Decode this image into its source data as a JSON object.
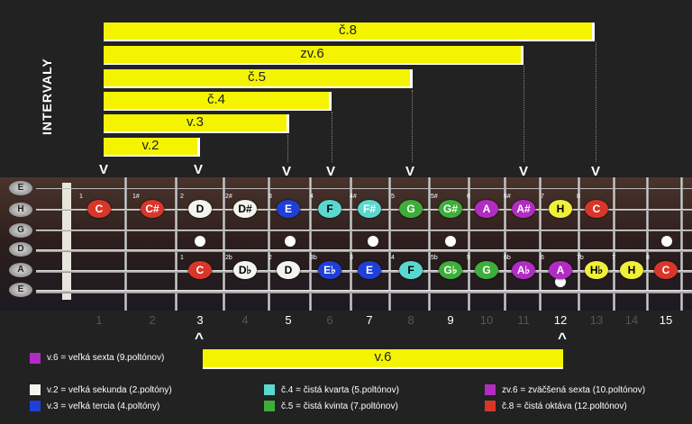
{
  "title": "INTERVALY",
  "intervals": [
    {
      "label": "č.8"
    },
    {
      "label": "zv.6"
    },
    {
      "label": "č.5"
    },
    {
      "label": "č.4"
    },
    {
      "label": "v.3"
    },
    {
      "label": "v.2"
    }
  ],
  "v_marker": "V",
  "caret": "^",
  "bottom_interval": "v.6",
  "strings": [
    "E",
    "H",
    "G",
    "D",
    "A",
    "E"
  ],
  "fret_numbers": [
    "1",
    "2",
    "3",
    "4",
    "5",
    "6",
    "7",
    "8",
    "9",
    "10",
    "11",
    "12",
    "13",
    "14",
    "15"
  ],
  "row_h": [
    {
      "n": "1",
      "note": "C",
      "color": "#d9362a",
      "text": "#fff"
    },
    {
      "n": "1#",
      "note": "C#",
      "color": "#d9362a",
      "text": "#fff"
    },
    {
      "n": "2",
      "note": "D",
      "color": "#f4f4ee",
      "text": "#000"
    },
    {
      "n": "2#",
      "note": "D#",
      "color": "#f4f4ee",
      "text": "#000"
    },
    {
      "n": "3",
      "note": "E",
      "color": "#1f3fd6",
      "text": "#fff"
    },
    {
      "n": "4",
      "note": "F",
      "color": "#5ad8cf",
      "text": "#000"
    },
    {
      "n": "4#",
      "note": "F#",
      "color": "#5ad8cf",
      "text": "#fff"
    },
    {
      "n": "5",
      "note": "G",
      "color": "#3eae3a",
      "text": "#fff"
    },
    {
      "n": "5#",
      "note": "G#",
      "color": "#3eae3a",
      "text": "#fff"
    },
    {
      "n": "6",
      "note": "A",
      "color": "#b22cc4",
      "text": "#fff"
    },
    {
      "n": "6#",
      "note": "A#",
      "color": "#b22cc4",
      "text": "#fff"
    },
    {
      "n": "7",
      "note": "H",
      "color": "#f0ef3a",
      "text": "#000"
    },
    {
      "n": "8",
      "note": "C",
      "color": "#d9362a",
      "text": "#fff"
    }
  ],
  "row_a": [
    {
      "n": "1",
      "note": "C",
      "color": "#d9362a",
      "text": "#fff"
    },
    {
      "n": "2b",
      "note": "D♭",
      "color": "#f4f4ee",
      "text": "#000"
    },
    {
      "n": "2",
      "note": "D",
      "color": "#f4f4ee",
      "text": "#000"
    },
    {
      "n": "3b",
      "note": "E♭",
      "color": "#1f3fd6",
      "text": "#fff"
    },
    {
      "n": "3",
      "note": "E",
      "color": "#1f3fd6",
      "text": "#fff"
    },
    {
      "n": "4",
      "note": "F",
      "color": "#5ad8cf",
      "text": "#000"
    },
    {
      "n": "5b",
      "note": "G♭",
      "color": "#3eae3a",
      "text": "#fff"
    },
    {
      "n": "5",
      "note": "G",
      "color": "#3eae3a",
      "text": "#fff"
    },
    {
      "n": "6b",
      "note": "A♭",
      "color": "#b22cc4",
      "text": "#fff"
    },
    {
      "n": "6",
      "note": "A",
      "color": "#b22cc4",
      "text": "#fff"
    },
    {
      "n": "7b",
      "note": "H♭",
      "color": "#f0ef3a",
      "text": "#000"
    },
    {
      "n": "7",
      "note": "H",
      "color": "#f0ef3a",
      "text": "#000"
    },
    {
      "n": "8",
      "note": "C",
      "color": "#d9362a",
      "text": "#fff"
    }
  ],
  "legend": {
    "v6": "v.6 = veľká sexta (9.poltónov)",
    "v2": "v.2 = veľká sekunda (2.poltóny)",
    "v3": "v.3 = veľká tercia (4.poltóny)",
    "c4": "č.4 = čistá kvarta (5.poltónov)",
    "c5": "č.5 = čistá kvinta (7.poltónov)",
    "zv6": "zv.6 = zväčšená sexta (10.poltónov)",
    "c8": "č.8 = čistá oktáva (12.poltónov)"
  },
  "colors": {
    "yellow": "#f4f400",
    "purple": "#b22cc4",
    "white": "#f4f4ee",
    "blue": "#1f3fd6",
    "cyan": "#5ad8cf",
    "green": "#3eae3a",
    "red": "#d9362a"
  }
}
